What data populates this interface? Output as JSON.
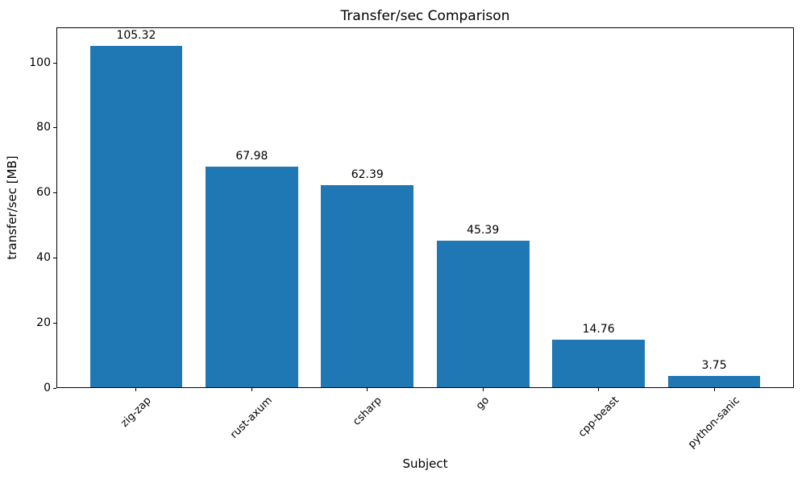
{
  "chart_data": {
    "type": "bar",
    "title": "Transfer/sec Comparison",
    "xlabel": "Subject",
    "ylabel": "transfer/sec [MB]",
    "categories": [
      "zig-zap",
      "rust-axum",
      "csharp",
      "go",
      "cpp-beast",
      "python-sanic"
    ],
    "values": [
      105.32,
      67.98,
      62.39,
      45.39,
      14.76,
      3.75
    ],
    "bar_value_labels": [
      "105.32",
      "67.98",
      "62.39",
      "45.39",
      "14.76",
      "3.75"
    ],
    "yticks": [
      0,
      20,
      40,
      60,
      80,
      100
    ],
    "ylim": [
      0,
      110.9
    ],
    "xlim": [
      -0.69,
      5.69
    ],
    "bar_width": 0.8,
    "bar_color": "#1f77b4",
    "text_color": "#000000",
    "background_color": "#ffffff",
    "grid": false,
    "legend": null,
    "x_tick_label_rotation_deg": 45
  }
}
